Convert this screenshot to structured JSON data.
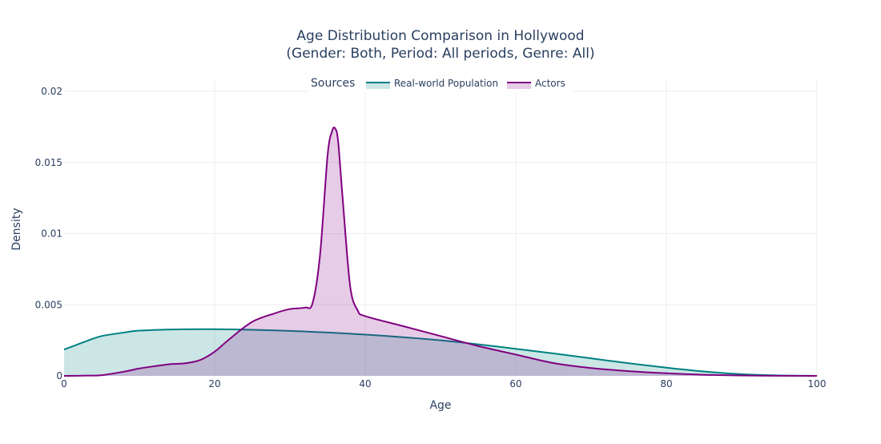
{
  "chart_data": {
    "type": "area",
    "title": "Age Distribution Comparison in Hollywood",
    "subtitle": "(Gender: Both, Period: All periods, Genre: All)",
    "xlabel": "Age",
    "ylabel": "Density",
    "xlim": [
      0,
      100
    ],
    "ylim": [
      0,
      0.02
    ],
    "x_ticks": [
      0,
      20,
      40,
      60,
      80,
      100
    ],
    "y_ticks": [
      0,
      0.005,
      0.01,
      0.015,
      0.02
    ],
    "y_tick_labels": [
      "0",
      "0.005",
      "0.01",
      "0.015",
      "0.02"
    ],
    "grid": true,
    "legend": {
      "title": "Sources",
      "placement": "top-center",
      "entries": [
        "Real-world Population",
        "Actors"
      ]
    },
    "series": [
      {
        "name": "Real-world Population",
        "color": "#008080",
        "fill": "rgba(0,128,128,0.2)",
        "x": [
          0,
          3,
          5,
          8,
          10,
          15,
          20,
          25,
          30,
          35,
          40,
          45,
          50,
          55,
          60,
          65,
          70,
          75,
          80,
          85,
          90,
          95,
          100
        ],
        "y": [
          0.00185,
          0.00245,
          0.0028,
          0.00305,
          0.00318,
          0.00327,
          0.00328,
          0.00324,
          0.00316,
          0.00305,
          0.0029,
          0.00272,
          0.0025,
          0.00222,
          0.0019,
          0.00158,
          0.00123,
          0.00089,
          0.00058,
          0.00031,
          0.00012,
          3e-05,
          0.0
        ]
      },
      {
        "name": "Actors",
        "color": "#800080",
        "fill": "rgba(128,0,128,0.2)",
        "x": [
          0,
          3,
          5,
          8,
          10,
          12,
          14,
          16,
          18,
          20,
          22,
          25,
          28,
          30,
          32,
          33,
          34,
          35,
          35.6,
          36,
          36.4,
          37,
          38,
          39,
          40,
          45,
          50,
          55,
          60,
          65,
          70,
          75,
          80,
          85,
          90,
          95,
          100
        ],
        "y": [
          0.0,
          2e-05,
          5e-05,
          0.0003,
          0.00052,
          0.00068,
          0.00082,
          0.00088,
          0.0011,
          0.0017,
          0.0026,
          0.0038,
          0.0044,
          0.0047,
          0.0048,
          0.0051,
          0.0085,
          0.0155,
          0.0172,
          0.0174,
          0.0165,
          0.0125,
          0.0063,
          0.0046,
          0.0042,
          0.0035,
          0.0028,
          0.0021,
          0.0015,
          0.0009,
          0.00055,
          0.00033,
          0.00018,
          8e-05,
          3e-05,
          1e-05,
          0.0
        ]
      }
    ]
  }
}
